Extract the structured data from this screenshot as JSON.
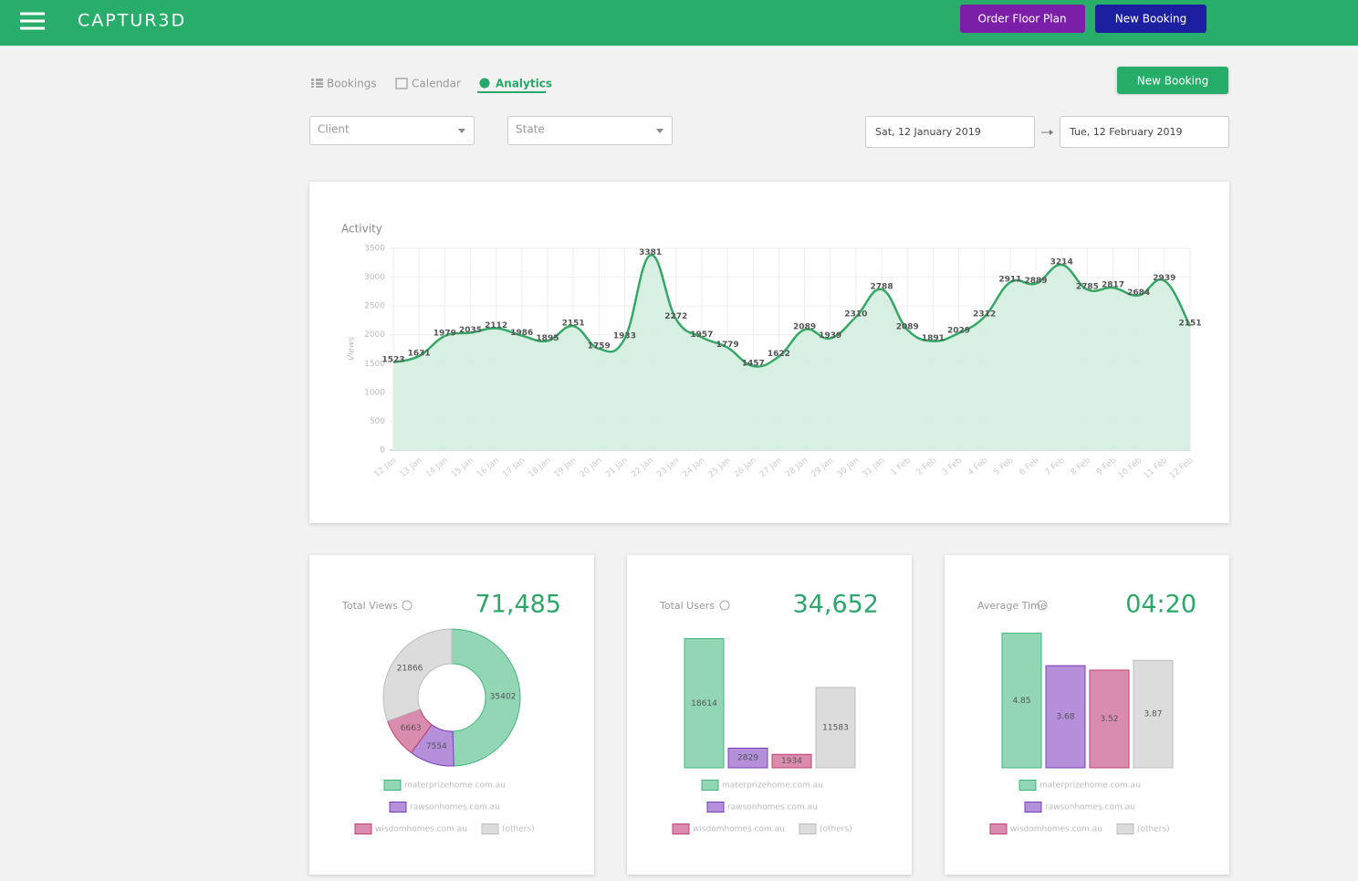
{
  "header": {
    "logo": "CAPTUR3D",
    "buttons": [
      "Order Floor Plan",
      "New Booking"
    ]
  },
  "tabs": [
    "Bookings",
    "Calendar",
    "Analytics"
  ],
  "actions": {
    "new_booking": "New Booking"
  },
  "filters": {
    "client": "Client",
    "state": "State",
    "date_from": "Sat, 12 January 2019",
    "date_to": "Tue, 12 February 2019"
  },
  "chart_data": [
    {
      "type": "line",
      "title": "Activity",
      "y_label": "Views",
      "categories": [
        "12 Jan",
        "13 Jan",
        "14 Jan",
        "15 Jan",
        "16 Jan",
        "17 Jan",
        "18 Jan",
        "19 Jan",
        "20 Jan",
        "21 Jan",
        "22 Jan",
        "23 Jan",
        "24 Jan",
        "25 Jan",
        "26 Jan",
        "27 Jan",
        "28 Jan",
        "29 Jan",
        "30 Jan",
        "31 Jan",
        "1 Feb",
        "2 Feb",
        "3 Feb",
        "4 Feb",
        "5 Feb",
        "6 Feb",
        "7 Feb",
        "8 Feb",
        "9 Feb",
        "10 Feb",
        "11 Feb",
        "12 Feb"
      ],
      "values": [
        1523,
        1631,
        1979,
        2035,
        2112,
        1986,
        1895,
        2151,
        1759,
        1933,
        3381,
        2272,
        1957,
        1779,
        1457,
        1622,
        2089,
        1939,
        2310,
        2788,
        2089,
        1891,
        2029,
        2312,
        2911,
        2889,
        3214,
        2785,
        2817,
        2684,
        2939,
        2151
      ],
      "color": "#35a865",
      "fill": "#d3eee0",
      "ylim": [
        0,
        3500
      ],
      "yticks": [
        0,
        500,
        1000,
        1500,
        2000,
        2500,
        3000,
        3500
      ],
      "grid": true
    },
    {
      "type": "pie",
      "donut": true,
      "title": "Total Views",
      "subtitle": "71,485",
      "categories": [
        "materprizehome.com.au",
        "rawsonhomes.com.au",
        "wisdomhomes.com.au",
        "(others)"
      ],
      "values": [
        35402,
        7554,
        6663,
        21866
      ],
      "colors": [
        "#93d6b6",
        "#b48fda",
        "#da8cae",
        "#dcdcdc"
      ],
      "stroke_colors": [
        "#3db878",
        "#7a3fb8",
        "#c2406f",
        "#bdbdbd"
      ]
    },
    {
      "type": "bar",
      "title": "Total Users",
      "subtitle": "34,652",
      "categories": [
        "materprizehome.com.au",
        "rawsonhomes.com.au",
        "wisdomhomes.com.au",
        "(others)"
      ],
      "values": [
        18614,
        2829,
        1934,
        11583
      ],
      "ylim": [
        0,
        20000
      ],
      "colors": [
        "#93d6b6",
        "#b48fda",
        "#da8cae",
        "#dcdcdc"
      ],
      "stroke_colors": [
        "#3db878",
        "#7a3fb8",
        "#c2406f",
        "#bdbdbd"
      ]
    },
    {
      "type": "bar",
      "title": "Average Time",
      "subtitle": "04:20",
      "categories": [
        "materprizehome.com.au",
        "rawsonhomes.com.au",
        "wisdomhomes.com.au",
        "(others)"
      ],
      "values": [
        4.85,
        3.68,
        3.52,
        3.87
      ],
      "ylim": [
        0,
        5
      ],
      "colors": [
        "#93d6b6",
        "#b48fda",
        "#da8cae",
        "#dcdcdc"
      ],
      "stroke_colors": [
        "#3db878",
        "#7a3fb8",
        "#c2406f",
        "#bdbdbd"
      ]
    }
  ]
}
